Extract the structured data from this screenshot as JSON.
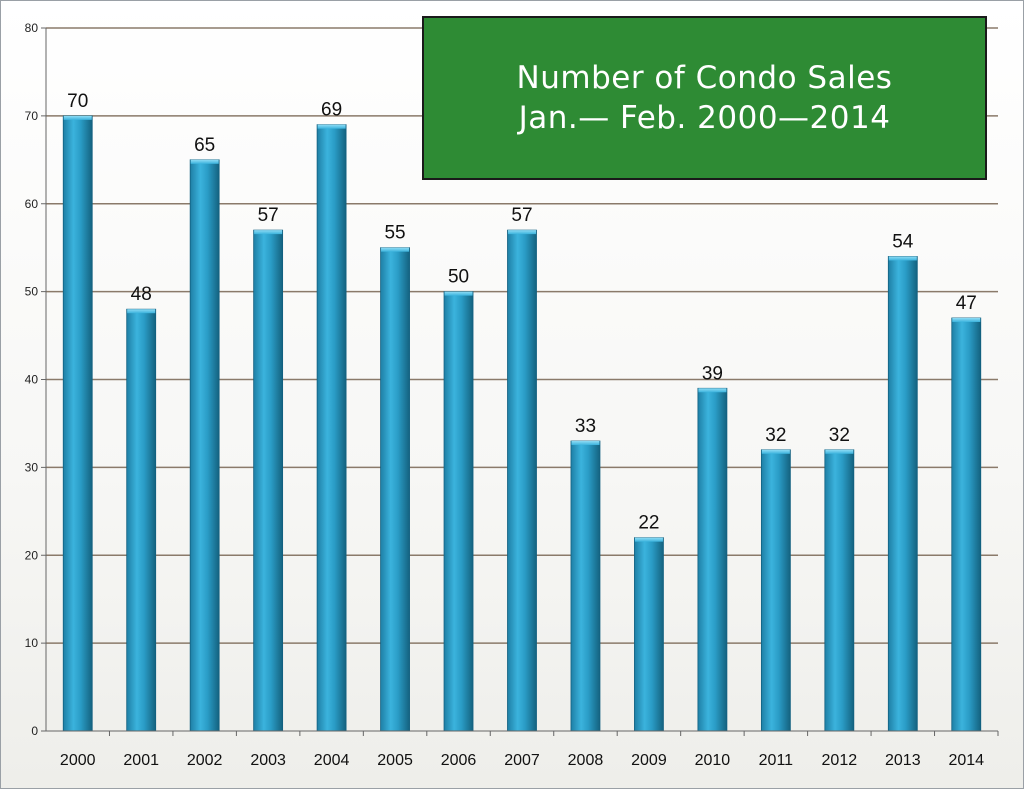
{
  "chart_data": {
    "type": "bar",
    "title_line1": "Number of Condo Sales",
    "title_line2": "Jan.— Feb. 2000—2014",
    "categories": [
      "2000",
      "2001",
      "2002",
      "2003",
      "2004",
      "2005",
      "2006",
      "2007",
      "2008",
      "2009",
      "2010",
      "2011",
      "2012",
      "2013",
      "2014"
    ],
    "values": [
      70,
      48,
      65,
      57,
      69,
      55,
      50,
      57,
      33,
      22,
      39,
      32,
      32,
      54,
      47
    ],
    "ylim": [
      0,
      80
    ],
    "yticks": [
      0,
      10,
      20,
      30,
      40,
      50,
      60,
      70,
      80
    ],
    "grid": true,
    "xlabel": "",
    "ylabel": "",
    "colors": {
      "bar_light": "#5ec4e8",
      "bar_mid": "#2a9cc6",
      "bar_dark": "#14627f",
      "title_bg": "#2e8b34",
      "title_text": "#ffffff",
      "grid": "#8a7a6a"
    }
  }
}
